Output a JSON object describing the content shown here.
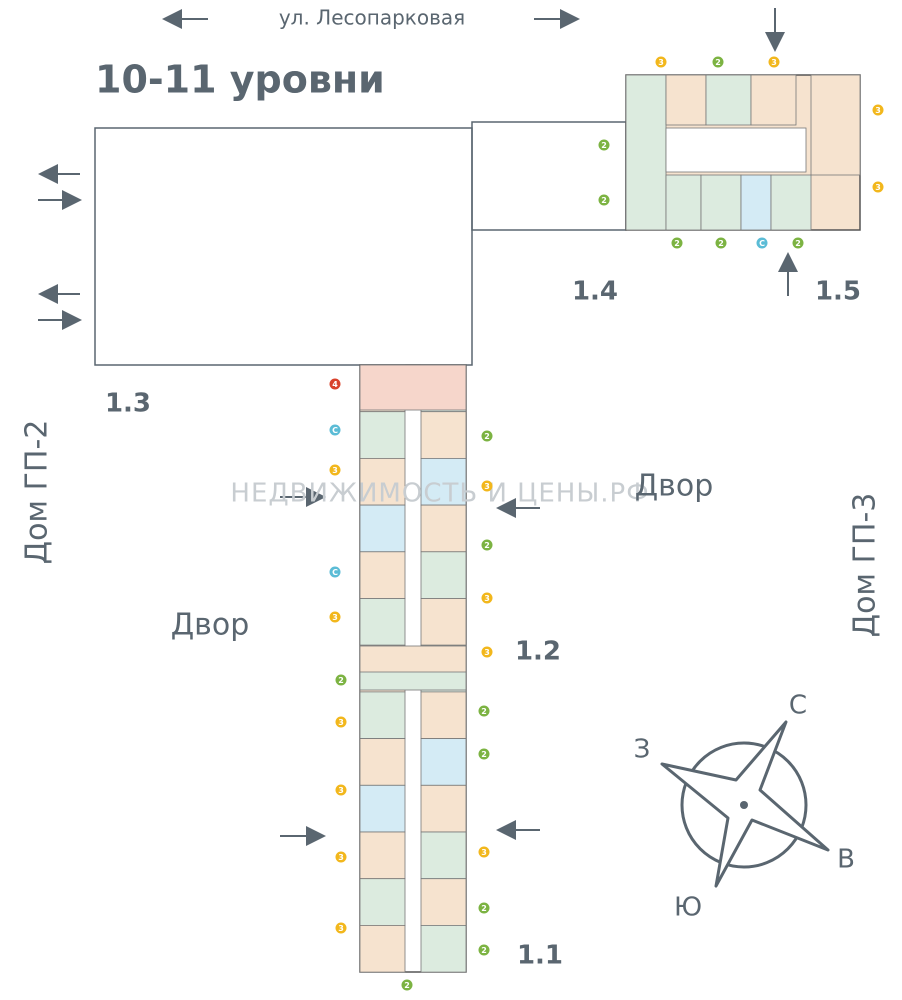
{
  "header": {
    "title": "10-11 уровни",
    "street": "ул. Лесопарковая"
  },
  "sections": [
    {
      "label": "1.1"
    },
    {
      "label": "1.2"
    },
    {
      "label": "1.3"
    },
    {
      "label": "1.4"
    },
    {
      "label": "1.5"
    }
  ],
  "yards": [
    {
      "label": "Двор"
    },
    {
      "label": "Двор"
    }
  ],
  "neighbors": [
    {
      "label": "Дом ГП-2"
    },
    {
      "label": "Дом ГП-3"
    }
  ],
  "compass": {
    "north": "С",
    "east": "В",
    "south": "Ю",
    "west": "З"
  },
  "watermark": "НЕДВИЖИМОСТЬ И ЦЕНЫ.РФ",
  "apartments": [
    {
      "rooms": "3",
      "color": "#f2b71c"
    },
    {
      "rooms": "2",
      "color": "#7cb342"
    },
    {
      "rooms": "3",
      "color": "#f2b71c"
    },
    {
      "rooms": "3",
      "color": "#f2b71c"
    },
    {
      "rooms": "3",
      "color": "#f2b71c"
    },
    {
      "rooms": "2",
      "color": "#7cb342"
    },
    {
      "rooms": "2",
      "color": "#7cb342"
    },
    {
      "rooms": "2",
      "color": "#7cb342"
    },
    {
      "rooms": "2",
      "color": "#7cb342"
    },
    {
      "rooms": "С",
      "color": "#5bbcd6"
    },
    {
      "rooms": "2",
      "color": "#7cb342"
    },
    {
      "rooms": "4",
      "color": "#d9412b"
    },
    {
      "rooms": "С",
      "color": "#5bbcd6"
    },
    {
      "rooms": "3",
      "color": "#f2b71c"
    },
    {
      "rooms": "С",
      "color": "#5bbcd6"
    },
    {
      "rooms": "3",
      "color": "#f2b71c"
    },
    {
      "rooms": "2",
      "color": "#7cb342"
    },
    {
      "rooms": "3",
      "color": "#f2b71c"
    },
    {
      "rooms": "3",
      "color": "#f2b71c"
    },
    {
      "rooms": "3",
      "color": "#f2b71c"
    },
    {
      "rooms": "3",
      "color": "#f2b71c"
    },
    {
      "rooms": "2",
      "color": "#7cb342"
    },
    {
      "rooms": "3",
      "color": "#f2b71c"
    },
    {
      "rooms": "2",
      "color": "#7cb342"
    },
    {
      "rooms": "3",
      "color": "#f2b71c"
    },
    {
      "rooms": "3",
      "color": "#f2b71c"
    },
    {
      "rooms": "2",
      "color": "#7cb342"
    },
    {
      "rooms": "2",
      "color": "#7cb342"
    },
    {
      "rooms": "3",
      "color": "#f2b71c"
    },
    {
      "rooms": "2",
      "color": "#7cb342"
    },
    {
      "rooms": "2",
      "color": "#7cb342"
    },
    {
      "rooms": "2",
      "color": "#7cb342"
    }
  ]
}
